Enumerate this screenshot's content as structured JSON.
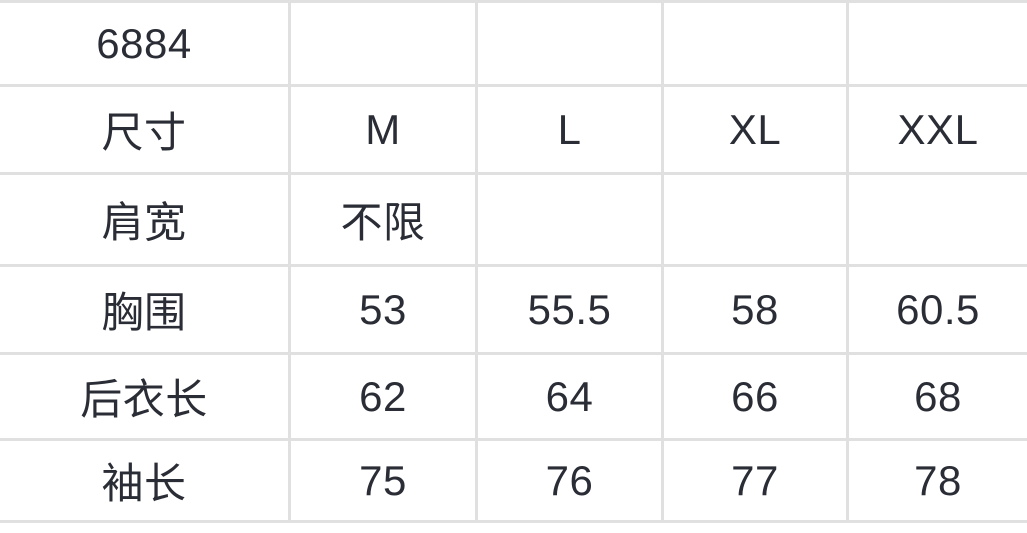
{
  "size_chart": {
    "product_code": "6884",
    "header": {
      "label": "尺寸",
      "sizes": [
        "M",
        "L",
        "XL",
        "XXL"
      ]
    },
    "rows": [
      {
        "label": "肩宽",
        "values": [
          "不限",
          "",
          "",
          ""
        ]
      },
      {
        "label": "胸围",
        "values": [
          "53",
          "55.5",
          "58",
          "60.5"
        ]
      },
      {
        "label": "后衣长",
        "values": [
          "62",
          "64",
          "66",
          "68"
        ]
      },
      {
        "label": "袖长",
        "values": [
          "75",
          "76",
          "77",
          "78"
        ]
      }
    ]
  },
  "colors": {
    "border": "#e0e0e0",
    "text": "#2a2d35",
    "background": "#ffffff"
  }
}
